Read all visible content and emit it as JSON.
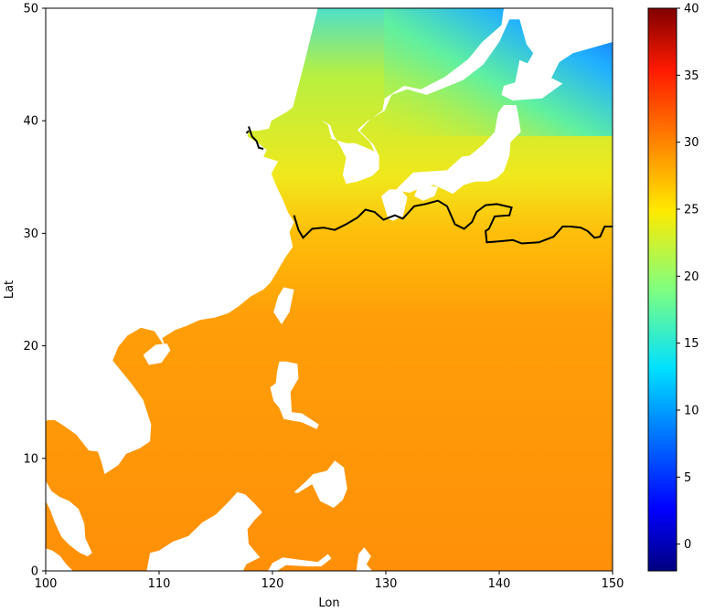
{
  "chart_data": {
    "type": "heatmap",
    "title": "",
    "xlabel": "Lon",
    "ylabel": "Lat",
    "xlim": [
      100,
      150
    ],
    "ylim": [
      0,
      50
    ],
    "x_ticks": [
      100,
      110,
      120,
      130,
      140,
      150
    ],
    "y_ticks": [
      0,
      10,
      20,
      30,
      40,
      50
    ],
    "colormap": "jet",
    "colorbar": {
      "min": -2,
      "max": 40,
      "ticks": [
        0,
        5,
        10,
        15,
        20,
        25,
        30,
        35,
        40
      ]
    },
    "land_color": "#ffffff",
    "contour": {
      "color": "#000000",
      "description_level": 28,
      "path": [
        [
          121.9,
          31.6
        ],
        [
          122.3,
          30.3
        ],
        [
          122.7,
          29.6
        ],
        [
          123.5,
          30.4
        ],
        [
          124.5,
          30.5
        ],
        [
          125.5,
          30.3
        ],
        [
          126.5,
          30.8
        ],
        [
          127.5,
          31.4
        ],
        [
          128.2,
          32.1
        ],
        [
          129.0,
          31.9
        ],
        [
          129.8,
          31.2
        ],
        [
          130.8,
          31.6
        ],
        [
          131.5,
          31.3
        ],
        [
          132.5,
          32.4
        ],
        [
          133.5,
          32.6
        ],
        [
          134.6,
          32.9
        ],
        [
          135.4,
          32.4
        ],
        [
          136.1,
          30.8
        ],
        [
          136.9,
          30.4
        ],
        [
          137.6,
          31.0
        ],
        [
          138.0,
          31.9
        ],
        [
          138.8,
          32.5
        ],
        [
          139.8,
          32.6
        ],
        [
          141.1,
          32.3
        ],
        [
          140.9,
          31.6
        ],
        [
          139.6,
          31.5
        ],
        [
          139.1,
          30.4
        ],
        [
          138.8,
          30.2
        ],
        [
          138.9,
          29.2
        ],
        [
          140.2,
          29.3
        ],
        [
          141.2,
          29.4
        ],
        [
          142.0,
          29.1
        ],
        [
          143.5,
          29.2
        ],
        [
          144.8,
          29.7
        ],
        [
          145.6,
          30.6
        ],
        [
          146.3,
          30.6
        ],
        [
          147.2,
          30.5
        ],
        [
          147.8,
          30.2
        ],
        [
          148.4,
          29.6
        ],
        [
          148.9,
          29.7
        ],
        [
          149.3,
          30.6
        ],
        [
          150.0,
          30.6
        ]
      ],
      "island_segments": [
        [
          [
            117.9,
            39.5
          ],
          [
            118.2,
            38.6
          ],
          [
            118.6,
            38.2
          ],
          [
            118.8,
            37.6
          ],
          [
            119.2,
            37.5
          ]
        ],
        [
          [
            117.7,
            38.9
          ],
          [
            117.9,
            39.1
          ]
        ]
      ]
    },
    "land_polygons": {
      "china_indochina": [
        [
          100,
          50
        ],
        [
          124.0,
          50
        ],
        [
          122.9,
          45.5
        ],
        [
          121.8,
          41.2
        ],
        [
          121.3,
          40.8
        ],
        [
          119.9,
          40.0
        ],
        [
          119.7,
          39.3
        ],
        [
          118.7,
          39.1
        ],
        [
          117.9,
          39.1
        ],
        [
          117.8,
          38.6
        ],
        [
          118.9,
          37.9
        ],
        [
          119.5,
          37.4
        ],
        [
          119.2,
          36.8
        ],
        [
          120.5,
          36.4
        ],
        [
          119.9,
          35.3
        ],
        [
          120.3,
          34.3
        ],
        [
          120.9,
          33.0
        ],
        [
          121.4,
          31.8
        ],
        [
          121.9,
          31.0
        ],
        [
          121.5,
          30.1
        ],
        [
          121.8,
          28.8
        ],
        [
          121.1,
          27.8
        ],
        [
          120.3,
          26.4
        ],
        [
          119.8,
          25.6
        ],
        [
          119.2,
          25.0
        ],
        [
          118.1,
          24.4
        ],
        [
          117.0,
          23.5
        ],
        [
          116.1,
          22.9
        ],
        [
          114.9,
          22.5
        ],
        [
          113.6,
          22.3
        ],
        [
          112.5,
          21.8
        ],
        [
          111.4,
          21.4
        ],
        [
          110.3,
          20.7
        ],
        [
          110.5,
          19.9
        ],
        [
          109.6,
          21.3
        ],
        [
          108.4,
          21.6
        ],
        [
          107.2,
          20.9
        ],
        [
          106.4,
          19.9
        ],
        [
          105.9,
          18.7
        ],
        [
          106.7,
          17.7
        ],
        [
          107.6,
          16.6
        ],
        [
          108.6,
          15.2
        ],
        [
          109.3,
          13.0
        ],
        [
          109.2,
          11.5
        ],
        [
          108.3,
          10.9
        ],
        [
          107.1,
          10.4
        ],
        [
          106.4,
          9.4
        ],
        [
          105.2,
          8.6
        ],
        [
          104.9,
          9.7
        ],
        [
          104.6,
          10.6
        ],
        [
          103.8,
          10.7
        ],
        [
          102.7,
          12.1
        ],
        [
          101.6,
          12.9
        ],
        [
          100.8,
          13.4
        ],
        [
          100.2,
          13.4
        ],
        [
          100,
          13.3
        ]
      ],
      "malay_peninsula": [
        [
          100,
          6.2
        ],
        [
          100.4,
          5.4
        ],
        [
          100.8,
          4.3
        ],
        [
          101.4,
          3.0
        ],
        [
          102.1,
          2.3
        ],
        [
          103.0,
          1.6
        ],
        [
          103.7,
          1.3
        ],
        [
          104.1,
          1.6
        ],
        [
          103.5,
          2.9
        ],
        [
          103.4,
          4.2
        ],
        [
          102.9,
          5.5
        ],
        [
          102.1,
          6.2
        ],
        [
          101.2,
          6.6
        ],
        [
          100.5,
          7.1
        ],
        [
          100,
          8.0
        ]
      ],
      "sumatra_corner": [
        [
          100,
          0
        ],
        [
          100,
          2.0
        ],
        [
          100.6,
          1.8
        ],
        [
          101.3,
          1.3
        ],
        [
          101.8,
          0.6
        ],
        [
          102.4,
          0
        ]
      ],
      "borneo": [
        [
          108.9,
          0
        ],
        [
          109.2,
          1.6
        ],
        [
          110.0,
          1.8
        ],
        [
          111.2,
          2.6
        ],
        [
          112.6,
          3.1
        ],
        [
          113.8,
          4.3
        ],
        [
          115.0,
          5.0
        ],
        [
          116.1,
          6.1
        ],
        [
          116.9,
          7.0
        ],
        [
          117.6,
          6.8
        ],
        [
          118.5,
          5.9
        ],
        [
          119.1,
          5.2
        ],
        [
          118.4,
          4.5
        ],
        [
          117.8,
          3.7
        ],
        [
          117.9,
          2.4
        ],
        [
          118.9,
          1.2
        ],
        [
          117.7,
          0.6
        ],
        [
          117.4,
          0
        ]
      ],
      "sulawesi": [
        [
          119.6,
          0
        ],
        [
          120.0,
          0.7
        ],
        [
          120.9,
          1.2
        ],
        [
          122.4,
          1.0
        ],
        [
          124.0,
          0.8
        ],
        [
          124.9,
          1.5
        ],
        [
          125.2,
          1.1
        ],
        [
          124.3,
          0.4
        ],
        [
          123.2,
          0.4
        ],
        [
          121.2,
          0.5
        ],
        [
          120.4,
          0
        ]
      ],
      "halmahera": [
        [
          127.4,
          0
        ],
        [
          127.6,
          1.5
        ],
        [
          128.1,
          2.1
        ],
        [
          128.7,
          1.3
        ],
        [
          128.3,
          0.6
        ],
        [
          128.8,
          0
        ]
      ],
      "luzon": [
        [
          120.6,
          18.6
        ],
        [
          121.2,
          18.6
        ],
        [
          122.2,
          18.4
        ],
        [
          122.3,
          17.1
        ],
        [
          121.6,
          15.9
        ],
        [
          121.7,
          14.1
        ],
        [
          122.6,
          14.0
        ],
        [
          124.1,
          13.0
        ],
        [
          123.9,
          12.6
        ],
        [
          122.6,
          13.2
        ],
        [
          121.0,
          13.5
        ],
        [
          120.6,
          14.5
        ],
        [
          120.1,
          15.1
        ],
        [
          119.8,
          16.3
        ],
        [
          120.3,
          16.7
        ],
        [
          120.4,
          17.7
        ]
      ],
      "mindanao": [
        [
          121.9,
          7.0
        ],
        [
          122.8,
          7.8
        ],
        [
          123.6,
          8.6
        ],
        [
          124.8,
          8.9
        ],
        [
          125.5,
          9.8
        ],
        [
          126.3,
          9.2
        ],
        [
          126.6,
          7.3
        ],
        [
          126.2,
          6.3
        ],
        [
          125.4,
          5.6
        ],
        [
          124.2,
          6.2
        ],
        [
          123.5,
          7.7
        ],
        [
          122.2,
          6.9
        ]
      ],
      "hainan": [
        [
          108.6,
          19.2
        ],
        [
          109.7,
          20.1
        ],
        [
          110.7,
          20.2
        ],
        [
          111.0,
          19.6
        ],
        [
          110.2,
          18.5
        ],
        [
          109.1,
          18.3
        ]
      ],
      "taiwan": [
        [
          121.0,
          25.2
        ],
        [
          121.9,
          25.0
        ],
        [
          121.5,
          23.0
        ],
        [
          120.8,
          21.9
        ],
        [
          120.1,
          23.0
        ],
        [
          120.5,
          24.4
        ]
      ],
      "korea": [
        [
          124.3,
          40.1
        ],
        [
          125.1,
          39.6
        ],
        [
          125.4,
          38.7
        ],
        [
          126.0,
          37.7
        ],
        [
          126.5,
          36.7
        ],
        [
          126.2,
          35.2
        ],
        [
          126.5,
          34.4
        ],
        [
          127.5,
          34.6
        ],
        [
          128.8,
          35.1
        ],
        [
          129.4,
          35.7
        ],
        [
          129.4,
          36.9
        ],
        [
          128.9,
          37.9
        ],
        [
          127.7,
          39.1
        ],
        [
          128.6,
          40.1
        ],
        [
          129.7,
          40.9
        ],
        [
          129.9,
          42.0
        ],
        [
          130.7,
          42.5
        ],
        [
          131.6,
          43.1
        ],
        [
          133.1,
          42.8
        ],
        [
          135.2,
          43.9
        ],
        [
          137.3,
          45.5
        ],
        [
          138.5,
          47.0
        ],
        [
          140.2,
          48.5
        ],
        [
          140.4,
          50.0
        ],
        [
          150,
          50
        ],
        [
          150,
          47.0
        ],
        [
          146.5,
          46.0
        ],
        [
          145.3,
          45.2
        ],
        [
          144.6,
          43.8
        ],
        [
          145.6,
          43.3
        ],
        [
          143.8,
          42.0
        ],
        [
          141.2,
          41.8
        ],
        [
          140.2,
          42.3
        ],
        [
          140.4,
          43.1
        ],
        [
          141.4,
          43.4
        ],
        [
          141.8,
          45.4
        ],
        [
          142.5,
          45.1
        ],
        [
          143.0,
          46.0
        ],
        [
          142.4,
          46.8
        ],
        [
          141.8,
          49.0
        ],
        [
          140.9,
          49.0
        ],
        [
          140.0,
          47.0
        ],
        [
          138.6,
          45.0
        ],
        [
          136.8,
          43.6
        ],
        [
          133.6,
          42.3
        ],
        [
          131.9,
          42.8
        ],
        [
          130.5,
          42.3
        ],
        [
          129.9,
          40.9
        ],
        [
          128.4,
          40.0
        ],
        [
          127.5,
          39.2
        ],
        [
          128.6,
          38.1
        ],
        [
          129.0,
          37.3
        ],
        [
          127.3,
          38.0
        ],
        [
          126.5,
          38.0
        ],
        [
          125.2,
          38.4
        ],
        [
          124.9,
          39.6
        ]
      ],
      "japan_honshu": [
        [
          131.0,
          34.0
        ],
        [
          132.4,
          35.4
        ],
        [
          133.9,
          35.5
        ],
        [
          135.4,
          35.6
        ],
        [
          136.7,
          36.8
        ],
        [
          137.4,
          36.9
        ],
        [
          138.6,
          37.9
        ],
        [
          139.6,
          39.0
        ],
        [
          139.9,
          40.7
        ],
        [
          140.4,
          41.4
        ],
        [
          141.5,
          41.4
        ],
        [
          141.7,
          40.4
        ],
        [
          141.9,
          39.0
        ],
        [
          141.0,
          38.1
        ],
        [
          140.9,
          36.9
        ],
        [
          140.4,
          35.5
        ],
        [
          139.8,
          34.9
        ],
        [
          139.0,
          34.6
        ],
        [
          137.9,
          34.6
        ],
        [
          136.9,
          34.3
        ],
        [
          135.9,
          33.5
        ],
        [
          135.1,
          33.9
        ],
        [
          134.2,
          34.3
        ],
        [
          133.0,
          34.0
        ],
        [
          132.1,
          33.6
        ],
        [
          131.0,
          33.8
        ]
      ],
      "japan_shikoku": [
        [
          132.5,
          33.3
        ],
        [
          133.3,
          32.9
        ],
        [
          134.3,
          33.3
        ],
        [
          134.6,
          34.1
        ],
        [
          133.5,
          34.3
        ],
        [
          132.8,
          34.0
        ]
      ],
      "japan_kyushu": [
        [
          129.6,
          33.3
        ],
        [
          130.3,
          33.9
        ],
        [
          131.3,
          33.9
        ],
        [
          131.9,
          33.2
        ],
        [
          131.5,
          31.5
        ],
        [
          130.6,
          31.1
        ],
        [
          130.2,
          31.3
        ],
        [
          129.8,
          32.6
        ]
      ]
    }
  }
}
